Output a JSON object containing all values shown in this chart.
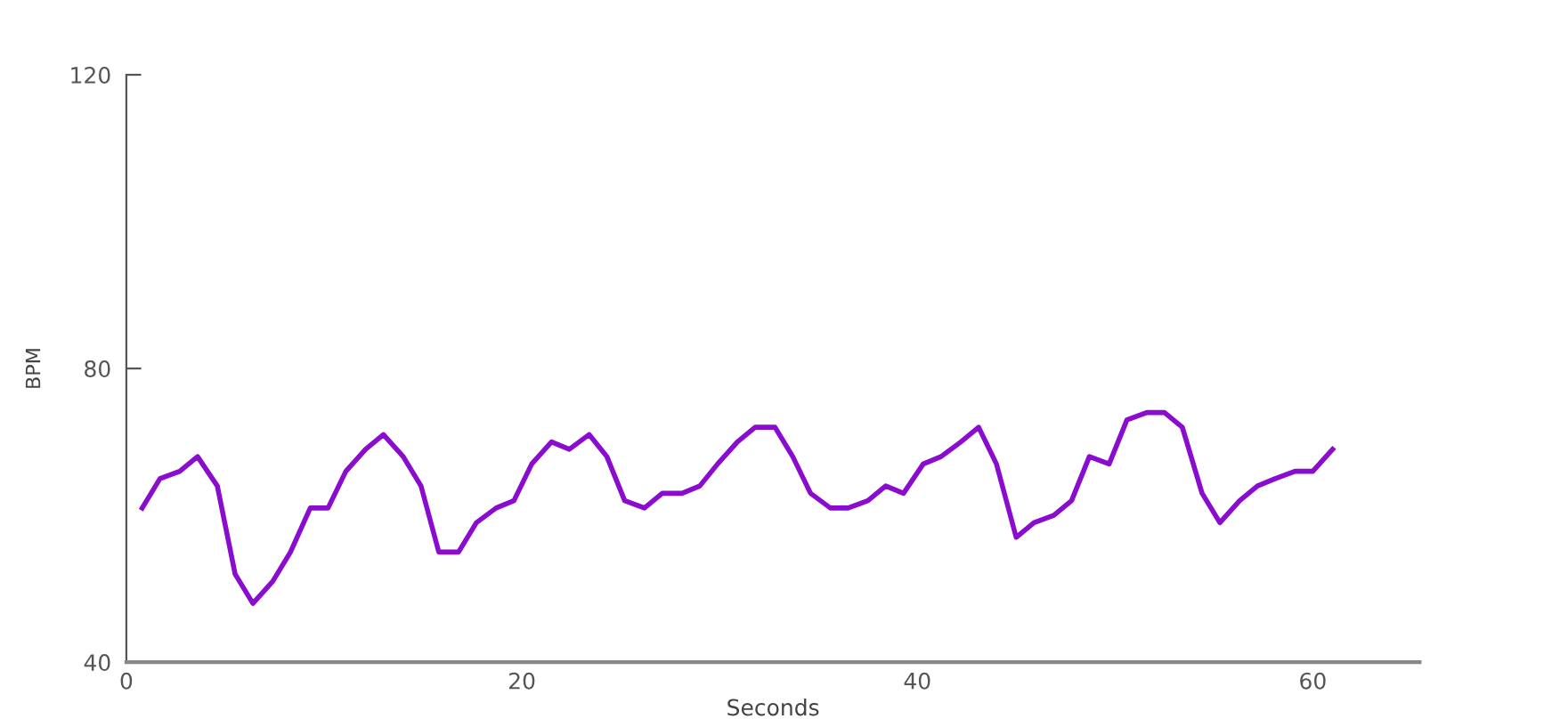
{
  "chart_data": {
    "type": "line",
    "xlabel": "Seconds",
    "ylabel": "BPM",
    "x": [
      0.8,
      1.7,
      2.7,
      3.6,
      4.6,
      5.5,
      6.4,
      7.4,
      8.3,
      9.3,
      10.2,
      11.1,
      12.1,
      13.0,
      14.0,
      14.9,
      15.8,
      16.8,
      17.7,
      18.7,
      19.6,
      20.5,
      21.5,
      22.4,
      23.4,
      24.3,
      25.2,
      26.2,
      27.1,
      28.1,
      29.0,
      29.9,
      30.9,
      31.8,
      32.8,
      33.7,
      34.6,
      35.6,
      36.5,
      37.5,
      38.4,
      39.3,
      40.3,
      41.2,
      42.2,
      43.1,
      44.0,
      45.0,
      45.9,
      46.9,
      47.8,
      48.7,
      49.7,
      50.6,
      51.6,
      52.5,
      53.4,
      54.4,
      55.3,
      56.3,
      57.2,
      58.1,
      59.1,
      60.0,
      61.0
    ],
    "series": [
      {
        "color": "#8a0ccf",
        "values": [
          61,
          65,
          66,
          68,
          64,
          52,
          48,
          51,
          55,
          61,
          61,
          66,
          69,
          71,
          68,
          64,
          55,
          55,
          59,
          61,
          62,
          67,
          70,
          69,
          71,
          68,
          62,
          61,
          63,
          63,
          64,
          67,
          70,
          72,
          72,
          68,
          63,
          61,
          61,
          62,
          64,
          63,
          67,
          68,
          70,
          72,
          67,
          57,
          59,
          60,
          62,
          68,
          67,
          73,
          74,
          74,
          72,
          63,
          59,
          62,
          64,
          65,
          66,
          66,
          69
        ]
      }
    ],
    "xlim": [
      0,
      65.4
    ],
    "ylim": [
      40,
      120
    ],
    "xticks": [
      0,
      20,
      40,
      60
    ],
    "yticks": [
      40,
      80,
      120
    ],
    "grid": false,
    "marker": "none",
    "line_style": "solid"
  }
}
